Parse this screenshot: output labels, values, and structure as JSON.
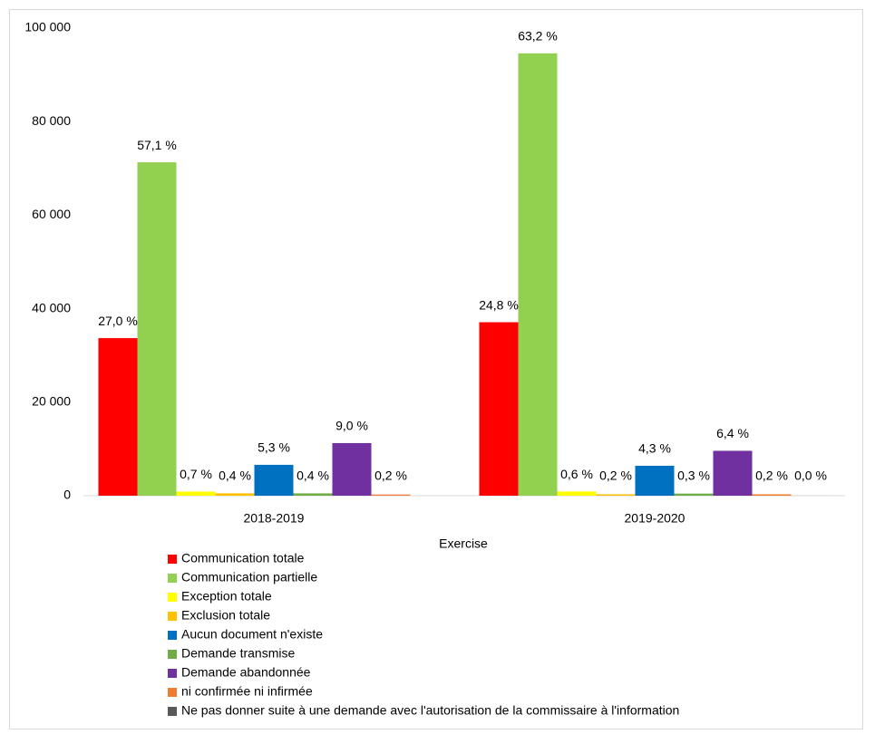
{
  "chart_data": {
    "type": "bar",
    "x_label": "Exercise",
    "categories": [
      "2018-2019",
      "2019-2020"
    ],
    "ylim": [
      0,
      100000
    ],
    "yticks": [
      0,
      {
        "value": 20000,
        "label": "20 000"
      },
      {
        "value": 40000,
        "label": "40 000"
      },
      {
        "value": 60000,
        "label": "60 000"
      },
      {
        "value": 80000,
        "label": "80 000"
      },
      {
        "value": 100000,
        "label": "100 000"
      }
    ],
    "grid": false,
    "series": [
      {
        "name": "Communication totale",
        "color": "#ff0000",
        "values": [
          33700,
          37100
        ],
        "value_labels": [
          "27,0 %",
          "24,8 %"
        ]
      },
      {
        "name": "Communication partielle",
        "color": "#92d050",
        "values": [
          71300,
          94600
        ],
        "value_labels": [
          "57,1 %",
          "63,2 %"
        ]
      },
      {
        "name": "Exception totale",
        "color": "#ffff00",
        "values": [
          880,
          900
        ],
        "value_labels": [
          "0,7 %",
          "0,6 %"
        ]
      },
      {
        "name": "Exclusion totale",
        "color": "#ffc000",
        "values": [
          500,
          300
        ],
        "value_labels": [
          "0,4 %",
          "0,2 %"
        ]
      },
      {
        "name": "Aucun document n'existe",
        "color": "#0070c0",
        "values": [
          6600,
          6400
        ],
        "value_labels": [
          "5,3 %",
          "4,3 %"
        ]
      },
      {
        "name": "Demande transmise",
        "color": "#70ad47",
        "values": [
          500,
          450
        ],
        "value_labels": [
          "0,4 %",
          "0,3 %"
        ]
      },
      {
        "name": "Demande abandonnée",
        "color": "#7030a0",
        "values": [
          11250,
          9600
        ],
        "value_labels": [
          "9,0 %",
          "6,4 %"
        ]
      },
      {
        "name": "ni confirmée ni infirmée",
        "color": "#ed7d31",
        "values": [
          250,
          300
        ],
        "value_labels": [
          "0,2 %",
          "0,2 %"
        ]
      },
      {
        "name": "Ne pas donner suite à une demande avec l'autorisation de la commissaire à l'information",
        "color": "#595959",
        "values": [
          null,
          10
        ],
        "value_labels": [
          null,
          "0,0 %"
        ]
      }
    ]
  }
}
